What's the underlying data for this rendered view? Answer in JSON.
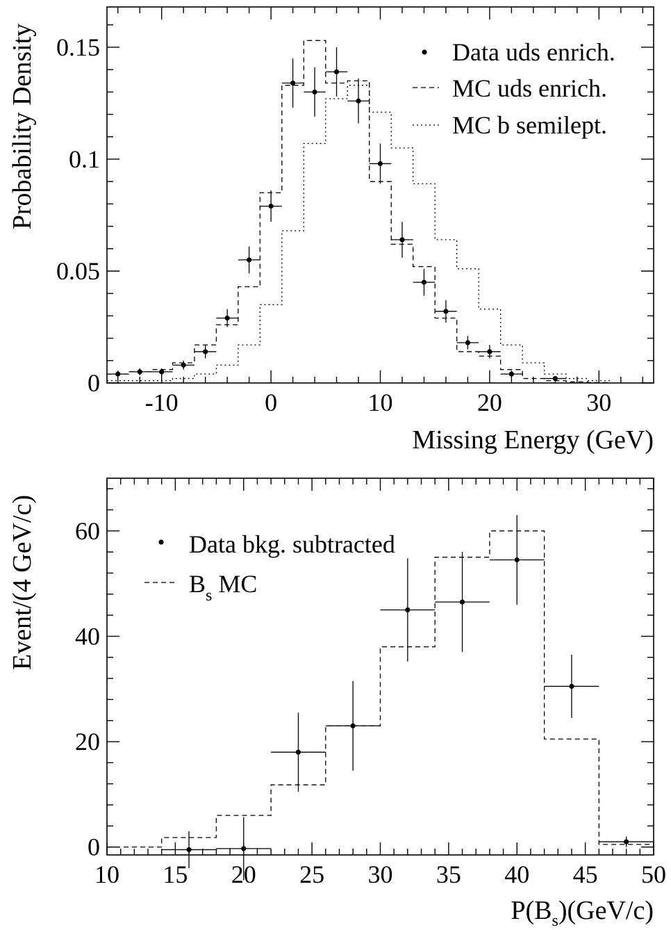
{
  "chart_data": [
    {
      "type": "histogram",
      "ylabel": "Probability Density",
      "xlabel": "Missing Energy (GeV)",
      "xlim": [
        -15,
        35
      ],
      "ylim": [
        0,
        0.168
      ],
      "xticks": [
        -10,
        0,
        10,
        20,
        30
      ],
      "xtick_labels": [
        "-10",
        "0",
        "10",
        "20",
        "30"
      ],
      "yticks": [
        0,
        0.05,
        0.1,
        0.15
      ],
      "ytick_labels": [
        "0",
        "0.05",
        "0.1",
        "0.15"
      ],
      "legend_position": "top-right",
      "legend": [
        {
          "label": "Data uds enrich.",
          "marker": "dot"
        },
        {
          "label": "MC   uds enrich.",
          "line": "dashed"
        },
        {
          "label": "MC   b semilept.",
          "line": "dotted"
        }
      ],
      "bin_edges": [
        -15,
        -13,
        -11,
        -9,
        -7,
        -5,
        -3,
        -1,
        1,
        3,
        5,
        7,
        9,
        11,
        13,
        15,
        17,
        19,
        21,
        23,
        25,
        27,
        29,
        31
      ],
      "series": [
        {
          "label": "Data uds enrich.",
          "style": "points",
          "x": [
            -14,
            -12,
            -10,
            -8,
            -6,
            -4,
            -2,
            0,
            2,
            4,
            6,
            8,
            10,
            12,
            14,
            16,
            18,
            20,
            22,
            26
          ],
          "y": [
            0.004,
            0.005,
            0.005,
            0.008,
            0.014,
            0.029,
            0.055,
            0.079,
            0.134,
            0.13,
            0.139,
            0.126,
            0.098,
            0.064,
            0.045,
            0.032,
            0.018,
            0.014,
            0.004,
            0.002
          ],
          "yerr": [
            0.0015,
            0.0015,
            0.0015,
            0.002,
            0.003,
            0.004,
            0.006,
            0.007,
            0.011,
            0.011,
            0.011,
            0.01,
            0.009,
            0.008,
            0.006,
            0.005,
            0.003,
            0.003,
            0.0015,
            0.001
          ]
        },
        {
          "label": "MC   uds enrich.",
          "style": "dashed-step",
          "values": [
            0.004,
            0.005,
            0.006,
            0.009,
            0.017,
            0.026,
            0.043,
            0.085,
            0.133,
            0.153,
            0.134,
            0.135,
            0.09,
            0.062,
            0.052,
            0.029,
            0.014,
            0.012,
            0.006,
            0.002,
            0.001,
            0.0005,
            0.0002
          ]
        },
        {
          "label": "MC   b semilept.",
          "style": "dotted-step",
          "values": [
            0.001,
            0.001,
            0.001,
            0.002,
            0.004,
            0.008,
            0.017,
            0.035,
            0.068,
            0.107,
            0.127,
            0.133,
            0.121,
            0.105,
            0.089,
            0.064,
            0.051,
            0.033,
            0.017,
            0.009,
            0.004,
            0.002,
            0.001
          ]
        }
      ]
    },
    {
      "type": "histogram",
      "ylabel": "Event/(4 GeV/c)",
      "xlabel_main": "P(B",
      "xlabel_sub": "s",
      "xlabel_tail": ")(GeV/c)",
      "xlim": [
        10,
        50
      ],
      "ylim": [
        -1.5,
        70
      ],
      "xticks": [
        10,
        15,
        20,
        25,
        30,
        35,
        40,
        45,
        50
      ],
      "xtick_labels": [
        "10",
        "15",
        "20",
        "25",
        "30",
        "35",
        "40",
        "45",
        "50"
      ],
      "yticks": [
        0,
        20,
        40,
        60
      ],
      "ytick_labels": [
        "0",
        "20",
        "40",
        "60"
      ],
      "legend_position": "top-left",
      "legend": [
        {
          "label": "Data bkg. subtracted",
          "marker": "dot"
        },
        {
          "label_main": "B",
          "label_sub": "s",
          "label_tail": " MC",
          "line": "dashed"
        }
      ],
      "bin_edges": [
        10,
        14,
        18,
        22,
        26,
        30,
        34,
        38,
        42,
        46,
        50
      ],
      "series": [
        {
          "label": "Data bkg. subtracted",
          "style": "points",
          "x": [
            16,
            20,
            24,
            28,
            32,
            36,
            40,
            44,
            48
          ],
          "y": [
            -0.5,
            -0.3,
            18,
            23,
            45,
            46.5,
            54.5,
            30.5,
            1
          ],
          "yerr": [
            3.5,
            6,
            7.5,
            8.5,
            9.8,
            9.5,
            8.5,
            6,
            1
          ]
        },
        {
          "label": "B s MC",
          "style": "dashed-step",
          "values": [
            0,
            1.8,
            6,
            11.8,
            23,
            38,
            55,
            60,
            20.5,
            0.5
          ]
        }
      ]
    }
  ]
}
